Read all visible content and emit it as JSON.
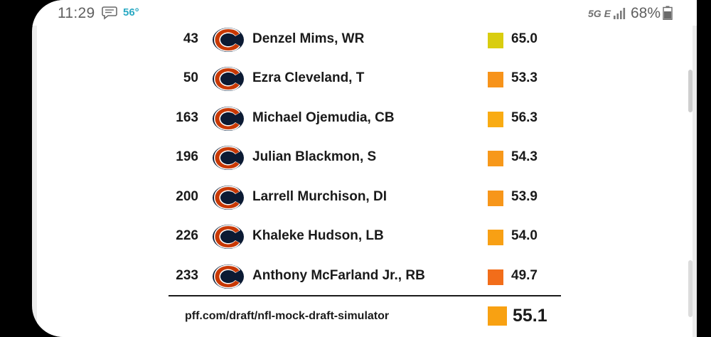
{
  "status_bar": {
    "time": "11:29",
    "temperature": "56°",
    "network": "5G E",
    "battery": "68%"
  },
  "picks": [
    {
      "pick": "43",
      "player": "Denzel Mims, WR",
      "grade": "65.0",
      "color": "#d9cd0f"
    },
    {
      "pick": "50",
      "player": "Ezra Cleveland, T",
      "grade": "53.3",
      "color": "#f7931a"
    },
    {
      "pick": "163",
      "player": "Michael Ojemudia, CB",
      "grade": "56.3",
      "color": "#f9ab13"
    },
    {
      "pick": "196",
      "player": "Julian Blackmon, S",
      "grade": "54.3",
      "color": "#f7981a"
    },
    {
      "pick": "200",
      "player": "Larrell Murchison, DI",
      "grade": "53.9",
      "color": "#f7961a"
    },
    {
      "pick": "226",
      "player": "Khaleke Hudson, LB",
      "grade": "54.0",
      "color": "#f8a014"
    },
    {
      "pick": "233",
      "player": "Anthony McFarland Jr., RB",
      "grade": "49.7",
      "color": "#f26d1a"
    }
  ],
  "footer": {
    "url": "pff.com/draft/nfl-mock-draft-simulator",
    "overall_grade": "55.1",
    "overall_color": "#f8a112"
  },
  "team_logo": "bears-c-logo"
}
